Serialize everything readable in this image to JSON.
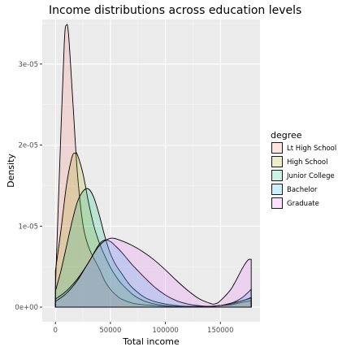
{
  "chart_data": {
    "type": "area",
    "title": "Income distributions across education levels",
    "xlabel": "Total income",
    "ylabel": "Density",
    "xlim": [
      -12000,
      186000
    ],
    "ylim": [
      -1.8e-06,
      3.55e-05
    ],
    "x_ticks": [
      0,
      50000,
      100000,
      150000
    ],
    "x_tick_labels": [
      "0",
      "50000",
      "100000",
      "150000"
    ],
    "y_ticks": [
      0,
      1e-05,
      2e-05,
      3e-05
    ],
    "y_tick_labels": [
      "0e+00",
      "1e-05",
      "2e-05",
      "3e-05"
    ],
    "grid": true,
    "legend_position": "right",
    "legend_title": "degree",
    "series": [
      {
        "name": "Lt High School",
        "color": "#F8766D",
        "x": [
          0,
          4000,
          8000,
          10000,
          12000,
          16000,
          20000,
          25000,
          30000,
          35000,
          40000,
          45000,
          50000,
          55000,
          60000,
          70000,
          80000,
          90000,
          100000,
          110000,
          120000,
          130000,
          140000,
          150000,
          160000,
          170000,
          178000
        ],
        "y": [
          2.5e-06,
          1.8e-05,
          3.25e-05,
          3.48e-05,
          3.35e-05,
          2.5e-05,
          1.65e-05,
          1.02e-05,
          7.5e-06,
          6e-06,
          4.7e-06,
          3.2e-06,
          2.2e-06,
          1.5e-06,
          1e-06,
          5e-07,
          3e-07,
          2e-07,
          1e-07,
          1e-07,
          1e-07,
          1e-07,
          1e-07,
          2e-07,
          3e-07,
          6e-07,
          8e-07
        ]
      },
      {
        "name": "High School",
        "color": "#A3A500",
        "x": [
          0,
          5000,
          10000,
          15000,
          18000,
          20000,
          25000,
          30000,
          35000,
          40000,
          45000,
          50000,
          55000,
          60000,
          70000,
          80000,
          90000,
          100000,
          110000,
          120000,
          130000,
          140000,
          150000,
          160000,
          170000,
          178000
        ],
        "y": [
          4.5e-06,
          9.5e-06,
          1.5e-05,
          1.85e-05,
          1.9e-05,
          1.88e-05,
          1.65e-05,
          1.3e-05,
          1e-05,
          7.9e-06,
          6.3e-06,
          4.9e-06,
          3.8e-06,
          2.9e-06,
          1.6e-06,
          8e-07,
          4e-07,
          2e-07,
          1e-07,
          1e-07,
          1e-07,
          1e-07,
          2e-07,
          5e-07,
          8e-07,
          1.2e-06
        ]
      },
      {
        "name": "Junior College",
        "color": "#00BF7D",
        "x": [
          0,
          5000,
          10000,
          15000,
          20000,
          25000,
          30000,
          35000,
          40000,
          45000,
          50000,
          55000,
          60000,
          65000,
          70000,
          80000,
          90000,
          100000,
          110000,
          120000,
          130000,
          140000,
          150000,
          160000,
          170000,
          178000
        ],
        "y": [
          2e-06,
          4.5e-06,
          7.5e-06,
          1.05e-05,
          1.3e-05,
          1.43e-05,
          1.46e-05,
          1.35e-05,
          1.13e-05,
          8.7e-06,
          6.6e-06,
          5.2e-06,
          4.2e-06,
          3.2e-06,
          2.4e-06,
          1.3e-06,
          7e-07,
          4e-07,
          2e-07,
          1e-07,
          1e-07,
          1e-07,
          2e-07,
          4e-07,
          8e-07,
          1.1e-06
        ]
      },
      {
        "name": "Bachelor",
        "color": "#00B0F6",
        "x": [
          0,
          10000,
          20000,
          30000,
          35000,
          40000,
          45000,
          50000,
          55000,
          60000,
          65000,
          70000,
          75000,
          80000,
          90000,
          100000,
          110000,
          120000,
          130000,
          140000,
          150000,
          160000,
          170000,
          178000
        ],
        "y": [
          1e-06,
          2e-06,
          3.5e-06,
          5.5e-06,
          6.7e-06,
          7.8e-06,
          8.3e-06,
          8.1e-06,
          7.5e-06,
          6.8e-06,
          6e-06,
          5.2e-06,
          4.5e-06,
          3.8e-06,
          2.5e-06,
          1.5e-06,
          8e-07,
          4e-07,
          2e-07,
          1e-07,
          2e-07,
          5e-07,
          1.2e-06,
          2.2e-06
        ]
      },
      {
        "name": "Graduate",
        "color": "#E76BF3",
        "x": [
          0,
          10000,
          20000,
          30000,
          40000,
          50000,
          60000,
          70000,
          80000,
          90000,
          100000,
          110000,
          120000,
          130000,
          140000,
          145000,
          150000,
          160000,
          170000,
          175000,
          178000
        ],
        "y": [
          7e-07,
          1.7e-06,
          3.3e-06,
          5.5e-06,
          7.6e-06,
          8.5e-06,
          8.2e-06,
          7.6e-06,
          6.8e-06,
          5.8e-06,
          4.6e-06,
          3.3e-06,
          2.1e-06,
          1.1e-06,
          5e-07,
          4e-07,
          8e-07,
          2.3e-06,
          4.8e-06,
          5.8e-06,
          5.9e-06
        ]
      }
    ]
  }
}
